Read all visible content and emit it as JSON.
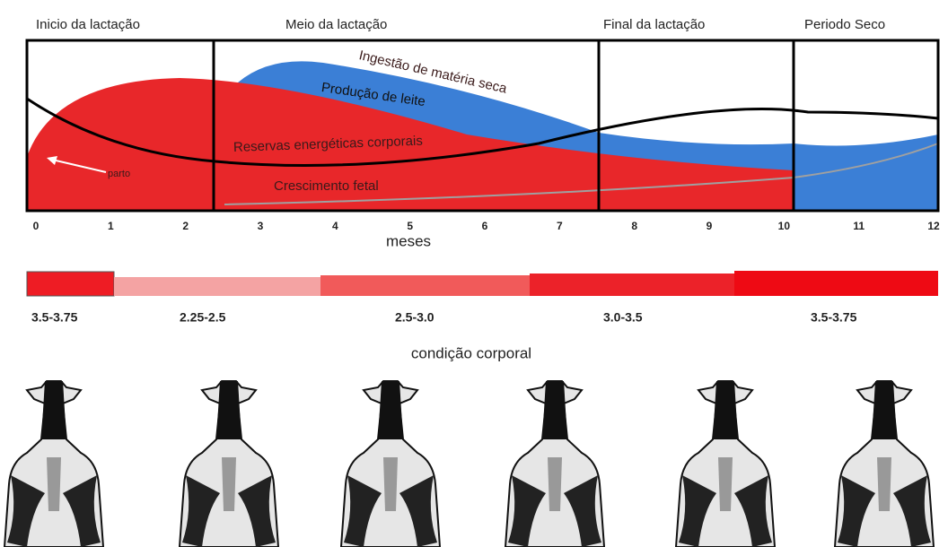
{
  "header": {
    "phases": [
      "Inicio da lactação",
      "Meio da lactação",
      "Final  da lactação",
      "Periodo Seco"
    ]
  },
  "curves": {
    "dry_matter_intake": "Ingestão de matéria seca",
    "milk_production": "Produção de leite",
    "energy_reserves": "Reservas energéticas corporais",
    "fetal_growth": "Crescimento fetal",
    "calving": "parto"
  },
  "axis": {
    "ticks": [
      "0",
      "1",
      "2",
      "3",
      "4",
      "5",
      "6",
      "7",
      "8",
      "9",
      "10",
      "11",
      "12"
    ],
    "label": "meses"
  },
  "bcs": {
    "ranges": [
      "3.5-3.75",
      "2.25-2.5",
      "2.5-3.0",
      "3.0-3.5",
      "3.5-3.75"
    ],
    "label": "condição corporal"
  }
}
